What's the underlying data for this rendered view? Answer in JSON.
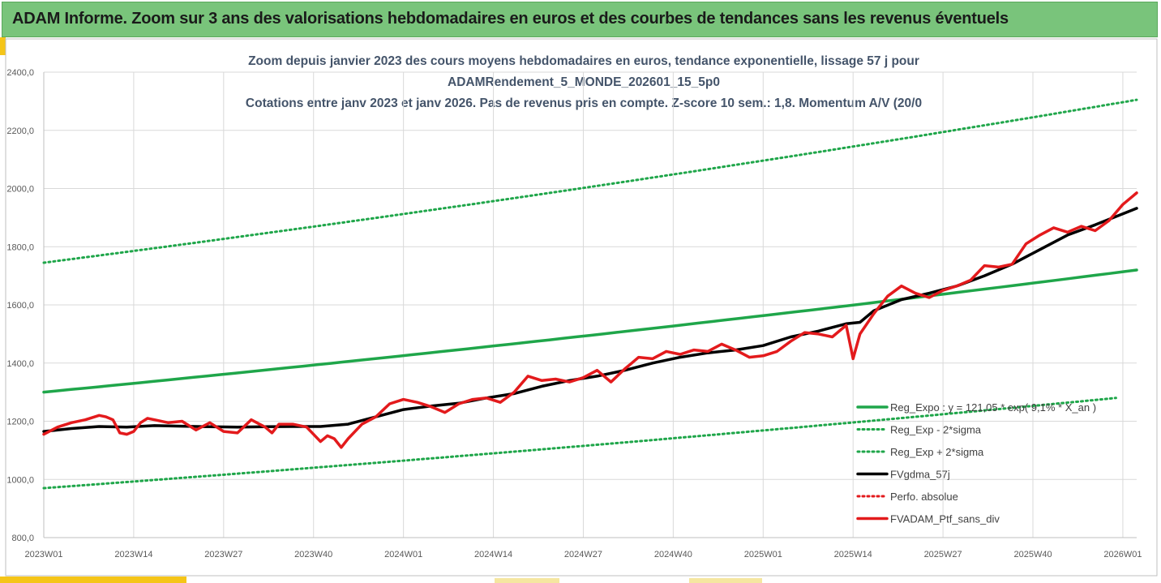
{
  "header": {
    "title": "ADAM Informe. Zoom sur 3 ans des valorisations hebdomadaires en euros et des courbes de tendances sans les revenus éventuels"
  },
  "colors": {
    "header_bg": "#79c47b",
    "accent_yellow": "#f5c518",
    "reg_expo": "#1fa64a",
    "sigma_lines": "#1fa64a",
    "moving_avg": "#000000",
    "perfo_absolue": "#e31a1c",
    "portfolio": "#e31a1c",
    "grid": "#d9d9d9"
  },
  "chart_data": {
    "type": "line",
    "title_lines": [
      "Zoom depuis janvier 2023 des cours moyens hebdomadaires  en euros, tendance exponentielle, lissage 57 j pour",
      "ADAMRendement_5_MONDE_202601_15_5p0",
      "Cotations entre janv 2023 et janv 2026. Pas de revenus pris en compte. Z-score 10 sem.: 1,8. Momentum A/V (20/0"
    ],
    "ylim": [
      800,
      2400
    ],
    "yticks": [
      "800,0",
      "1000,0",
      "1200,0",
      "1400,0",
      "1600,0",
      "1800,0",
      "2000,0",
      "2200,0",
      "2400,0"
    ],
    "ytick_values": [
      800,
      1000,
      1200,
      1400,
      1600,
      1800,
      2000,
      2200,
      2400
    ],
    "xlim": [
      0,
      158
    ],
    "xticks": [
      "2023W01",
      "2023W14",
      "2023W27",
      "2023W40",
      "2024W01",
      "2024W14",
      "2024W27",
      "2024W40",
      "2025W01",
      "2025W14",
      "2025W27",
      "2025W40",
      "2026W01"
    ],
    "xtick_positions": [
      0,
      13,
      26,
      39,
      52,
      65,
      78,
      91,
      104,
      117,
      130,
      143,
      156
    ],
    "legend": [
      {
        "label": "Reg_Expo : y = 121,05 * exp( 9,1% * X_an )",
        "style": "solid",
        "color": "#1fa64a"
      },
      {
        "label": "Reg_Exp - 2*sigma",
        "style": "dotted",
        "color": "#1fa64a"
      },
      {
        "label": "Reg_Exp + 2*sigma",
        "style": "dotted",
        "color": "#1fa64a"
      },
      {
        "label": "FVgdma_57j",
        "style": "solid",
        "color": "#000000"
      },
      {
        "label": "Perfo. absolue",
        "style": "dotted",
        "color": "#e31a1c"
      },
      {
        "label": "FVADAM_Ptf_sans_div",
        "style": "solid",
        "color": "#e31a1c"
      }
    ],
    "series": [
      {
        "name": "Reg_Expo",
        "x": [
          0,
          158
        ],
        "y_start": 1300,
        "y_end": 1720,
        "growth": "exponential"
      },
      {
        "name": "Reg_Exp + 2*sigma",
        "x": [
          0,
          158
        ],
        "y_start": 1745,
        "y_end": 2305,
        "growth": "exponential"
      },
      {
        "name": "Reg_Exp - 2*sigma",
        "x": [
          0,
          155
        ],
        "y_start": 970,
        "y_end": 1280,
        "growth": "exponential"
      },
      {
        "name": "FVgdma_57j",
        "x": [
          0,
          4,
          8,
          12,
          16,
          20,
          24,
          28,
          32,
          36,
          40,
          44,
          48,
          52,
          56,
          60,
          64,
          68,
          72,
          76,
          80,
          84,
          88,
          92,
          96,
          100,
          104,
          108,
          112,
          116,
          118,
          120,
          124,
          128,
          132,
          136,
          140,
          144,
          148,
          152,
          158
        ],
        "y": [
          1165,
          1175,
          1182,
          1180,
          1185,
          1183,
          1181,
          1180,
          1181,
          1182,
          1182,
          1190,
          1215,
          1240,
          1252,
          1262,
          1280,
          1295,
          1320,
          1340,
          1355,
          1375,
          1400,
          1420,
          1435,
          1445,
          1460,
          1490,
          1510,
          1535,
          1540,
          1580,
          1618,
          1640,
          1665,
          1700,
          1740,
          1790,
          1840,
          1875,
          1932
        ]
      },
      {
        "name": "FVADAM_Ptf_sans_div",
        "x": [
          0,
          2,
          4,
          6,
          8,
          9,
          10,
          11,
          12,
          13,
          14,
          15,
          16,
          18,
          20,
          22,
          24,
          26,
          28,
          30,
          32,
          33,
          34,
          36,
          38,
          40,
          41,
          42,
          43,
          44,
          46,
          48,
          50,
          52,
          54,
          56,
          58,
          60,
          62,
          64,
          66,
          68,
          70,
          72,
          74,
          76,
          78,
          80,
          82,
          84,
          85,
          86,
          88,
          90,
          92,
          94,
          96,
          98,
          100,
          102,
          104,
          106,
          108,
          110,
          112,
          114,
          116,
          117,
          118,
          120,
          122,
          124,
          126,
          128,
          130,
          132,
          134,
          136,
          138,
          140,
          142,
          144,
          146,
          148,
          150,
          152,
          154,
          156,
          158
        ],
        "y": [
          1155,
          1180,
          1195,
          1205,
          1220,
          1215,
          1205,
          1160,
          1155,
          1165,
          1195,
          1210,
          1205,
          1195,
          1200,
          1170,
          1195,
          1165,
          1160,
          1205,
          1180,
          1160,
          1190,
          1190,
          1180,
          1130,
          1150,
          1140,
          1110,
          1140,
          1190,
          1215,
          1260,
          1275,
          1265,
          1250,
          1230,
          1260,
          1275,
          1280,
          1265,
          1300,
          1355,
          1340,
          1345,
          1335,
          1350,
          1375,
          1335,
          1380,
          1400,
          1420,
          1415,
          1440,
          1430,
          1445,
          1440,
          1465,
          1445,
          1420,
          1425,
          1440,
          1475,
          1505,
          1500,
          1490,
          1530,
          1415,
          1500,
          1570,
          1630,
          1665,
          1640,
          1625,
          1650,
          1665,
          1685,
          1735,
          1730,
          1740,
          1810,
          1840,
          1865,
          1850,
          1870,
          1855,
          1890,
          1945,
          1985
        ]
      }
    ]
  }
}
